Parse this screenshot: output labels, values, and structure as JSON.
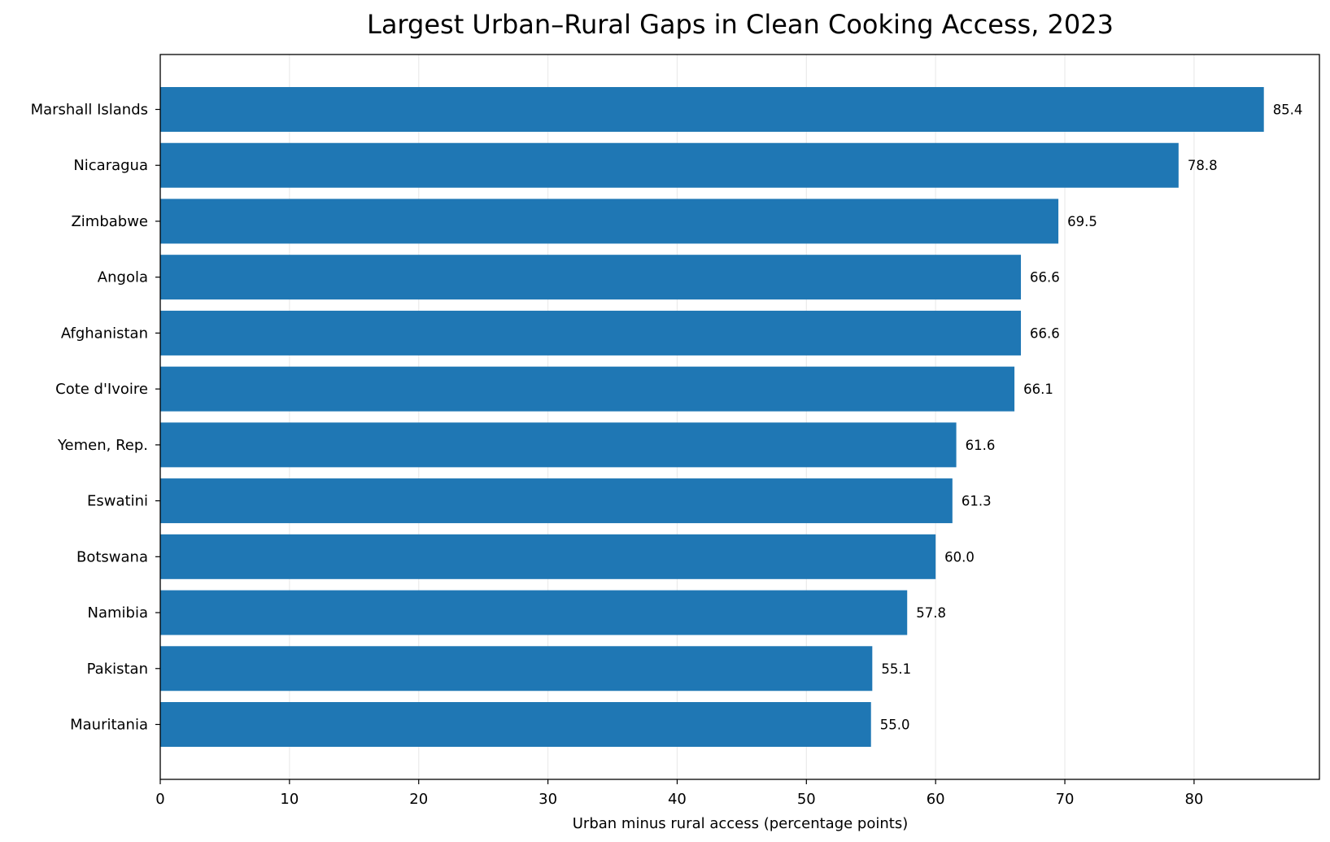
{
  "chart_data": {
    "type": "bar",
    "orientation": "horizontal",
    "title": "Largest Urban–Rural Gaps in Clean Cooking Access, 2023",
    "xlabel": "Urban minus rural access (percentage points)",
    "ylabel": "",
    "categories": [
      "Marshall Islands",
      "Nicaragua",
      "Zimbabwe",
      "Angola",
      "Afghanistan",
      "Cote d'Ivoire",
      "Yemen, Rep.",
      "Eswatini",
      "Botswana",
      "Namibia",
      "Pakistan",
      "Mauritania"
    ],
    "values": [
      85.4,
      78.8,
      69.5,
      66.6,
      66.6,
      66.1,
      61.6,
      61.3,
      60.0,
      57.8,
      55.1,
      55.0
    ],
    "data_labels": [
      "85.4",
      "78.8",
      "69.5",
      "66.6",
      "66.6",
      "66.1",
      "61.6",
      "61.3",
      "60.0",
      "57.8",
      "55.1",
      "55.0"
    ],
    "xticks": [
      0,
      10,
      20,
      30,
      40,
      50,
      60,
      70,
      80
    ],
    "xlim": [
      0,
      89.7
    ],
    "grid": "vertical",
    "legend": "none",
    "colors": {
      "bar": "#1f77b4",
      "grid": "#ebebeb",
      "axis": "#000000"
    }
  }
}
